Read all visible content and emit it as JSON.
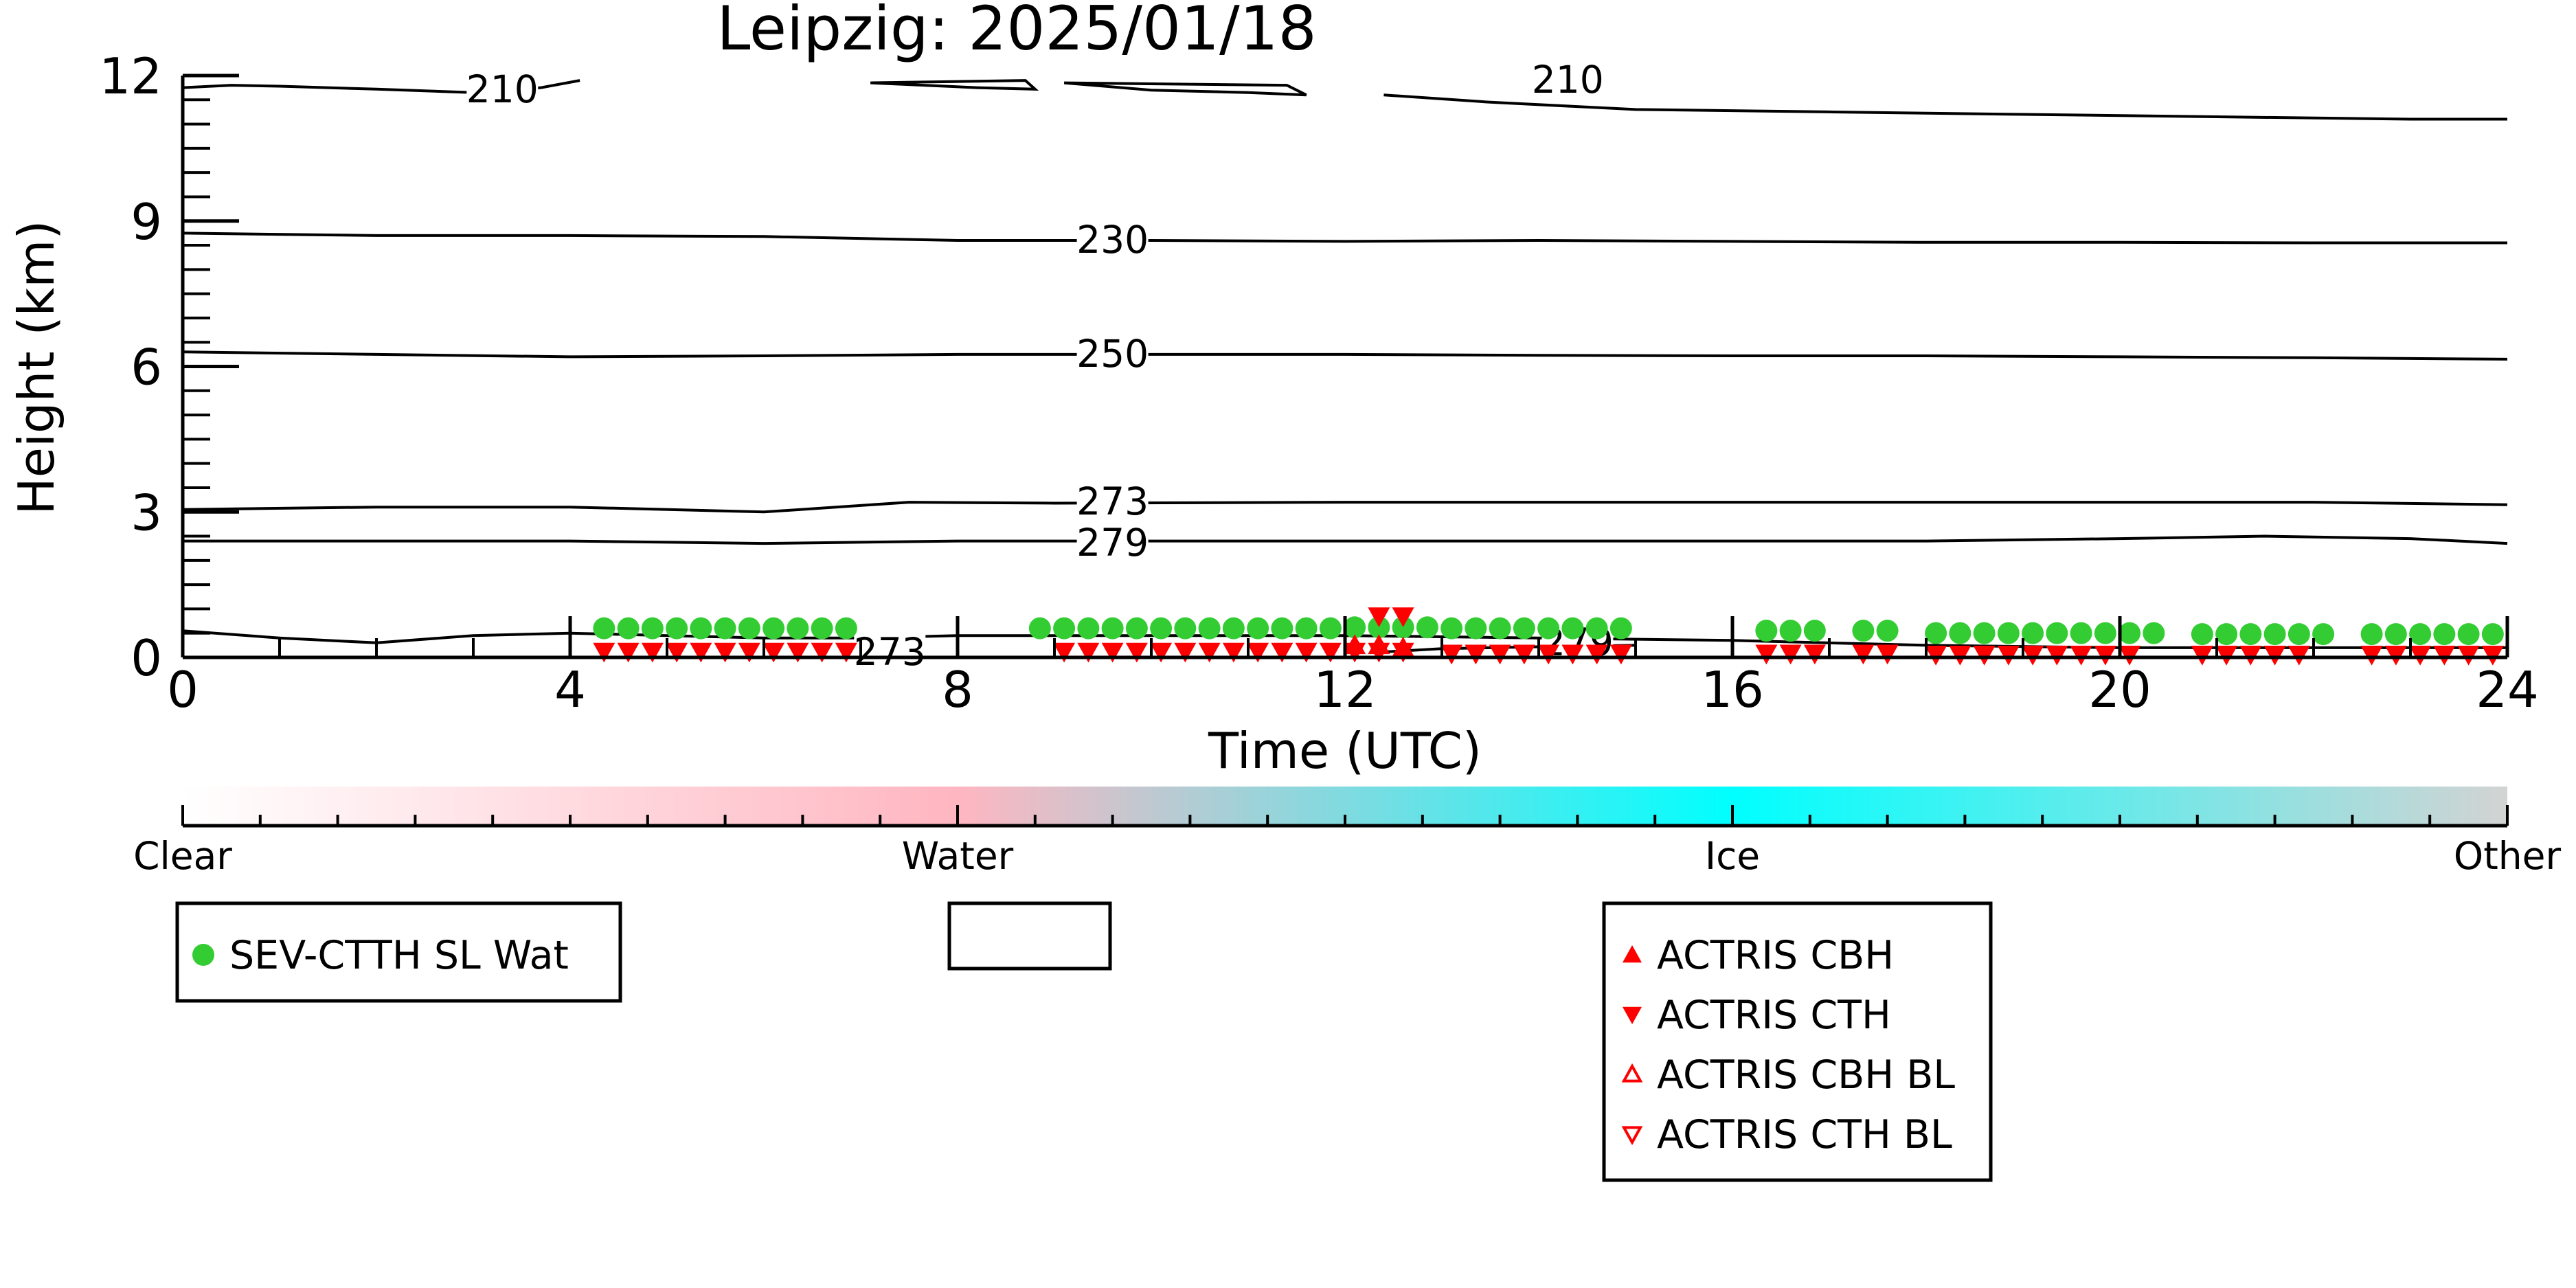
{
  "chart_data": {
    "type": "scatter",
    "title": "Leipzig: 2025/01/18",
    "xlabel": "Time (UTC)",
    "ylabel": "Height (km)",
    "xlim": [
      0,
      24
    ],
    "ylim": [
      0,
      12
    ],
    "xticks": [
      0,
      4,
      8,
      12,
      16,
      20,
      24
    ],
    "yticks": [
      0,
      3,
      6,
      9,
      12
    ],
    "grid": false,
    "colorbar": {
      "labels": [
        "Clear",
        "Water",
        "Ice",
        "Other"
      ],
      "colors": [
        "#ffffff",
        "#ffb6c1",
        "#00ffff",
        "#d3d3d3"
      ]
    },
    "contours": [
      {
        "label": "210",
        "label_pos": [
          3.3,
          11.7
        ],
        "x": [
          0,
          0.5,
          1,
          2,
          3,
          3.7,
          4.1
        ],
        "y": [
          11.75,
          11.8,
          11.78,
          11.72,
          11.65,
          11.75,
          11.9
        ]
      },
      {
        "label": "",
        "label_pos": null,
        "x": [
          7.1,
          8.2,
          8.8,
          8.7,
          7.1
        ],
        "y": [
          11.85,
          11.75,
          11.72,
          11.9,
          11.85
        ]
      },
      {
        "label": "",
        "label_pos": null,
        "x": [
          9.1,
          10,
          11,
          11.6,
          11.4,
          9.1
        ],
        "y": [
          11.85,
          11.7,
          11.65,
          11.6,
          11.8,
          11.85
        ]
      },
      {
        "label": "210",
        "label_pos": [
          14.3,
          11.9
        ],
        "x": [
          12.4,
          13.5,
          15,
          17,
          19,
          21,
          23,
          24
        ],
        "y": [
          11.6,
          11.45,
          11.3,
          11.25,
          11.2,
          11.15,
          11.1,
          11.1
        ]
      },
      {
        "label": "230",
        "label_pos": [
          9.6,
          8.6
        ],
        "x": [
          0,
          2,
          4,
          6,
          8,
          10,
          12,
          14,
          16,
          18,
          20,
          22,
          24
        ],
        "y": [
          8.75,
          8.7,
          8.7,
          8.68,
          8.6,
          8.6,
          8.58,
          8.6,
          8.58,
          8.56,
          8.56,
          8.55,
          8.55
        ]
      },
      {
        "label": "250",
        "label_pos": [
          9.6,
          6.25
        ],
        "x": [
          0,
          2,
          4,
          6,
          8,
          10,
          12,
          14,
          16,
          18,
          20,
          22,
          24
        ],
        "y": [
          6.3,
          6.25,
          6.2,
          6.22,
          6.25,
          6.25,
          6.25,
          6.23,
          6.22,
          6.22,
          6.2,
          6.18,
          6.15
        ]
      },
      {
        "label": "273",
        "label_pos": [
          9.6,
          3.2
        ],
        "x": [
          0,
          2,
          4,
          6,
          7.5,
          9,
          12,
          14,
          16,
          18,
          20,
          22,
          24
        ],
        "y": [
          3.05,
          3.1,
          3.1,
          3.0,
          3.2,
          3.18,
          3.2,
          3.2,
          3.2,
          3.2,
          3.2,
          3.2,
          3.15
        ]
      },
      {
        "label": "279",
        "label_pos": [
          9.6,
          2.35
        ],
        "x": [
          0,
          2,
          4,
          6,
          8,
          10,
          12,
          14,
          16,
          18,
          20,
          21.5,
          23,
          24
        ],
        "y": [
          2.4,
          2.4,
          2.4,
          2.35,
          2.4,
          2.4,
          2.4,
          2.4,
          2.4,
          2.4,
          2.45,
          2.5,
          2.45,
          2.35
        ]
      },
      {
        "label": "273",
        "label_pos": [
          7.3,
          0.1
        ],
        "x": [
          0,
          1,
          2,
          3,
          4,
          5,
          6,
          7,
          8,
          10,
          12,
          14,
          16,
          18,
          20,
          22,
          24
        ],
        "y": [
          0.55,
          0.4,
          0.3,
          0.45,
          0.5,
          0.45,
          0.4,
          0.4,
          0.45,
          0.45,
          0.45,
          0.4,
          0.35,
          0.25,
          0.2,
          0.2,
          0.2
        ]
      },
      {
        "label": "279",
        "label_pos": [
          14.4,
          0.3
        ],
        "x": [
          12.3,
          13,
          14,
          15
        ],
        "y": [
          0.1,
          0.18,
          0.22,
          0.25
        ]
      }
    ],
    "series": [
      {
        "name": "SEV-CTTH SL Wat",
        "marker": "circle",
        "color": "#33cc33",
        "x": [
          4.35,
          4.6,
          4.85,
          5.1,
          5.35,
          5.6,
          5.85,
          6.1,
          6.35,
          6.6,
          6.85,
          8.85,
          9.1,
          9.35,
          9.6,
          9.85,
          10.1,
          10.35,
          10.6,
          10.85,
          11.1,
          11.35,
          11.6,
          11.85,
          12.1,
          12.35,
          12.6,
          12.85,
          13.1,
          13.35,
          13.6,
          13.85,
          14.1,
          14.35,
          14.6,
          14.85,
          16.35,
          16.6,
          16.85,
          17.35,
          17.6,
          18.1,
          18.35,
          18.6,
          18.85,
          19.1,
          19.35,
          19.6,
          19.85,
          20.1,
          20.35,
          20.85,
          21.1,
          21.35,
          21.6,
          21.85,
          22.1,
          22.6,
          22.85,
          23.1,
          23.35,
          23.6,
          23.85
        ],
        "y": [
          0.6,
          0.6,
          0.6,
          0.6,
          0.6,
          0.6,
          0.6,
          0.6,
          0.6,
          0.6,
          0.6,
          0.6,
          0.6,
          0.6,
          0.6,
          0.6,
          0.6,
          0.6,
          0.6,
          0.6,
          0.6,
          0.6,
          0.6,
          0.6,
          0.62,
          0.62,
          0.62,
          0.62,
          0.6,
          0.6,
          0.6,
          0.6,
          0.6,
          0.6,
          0.6,
          0.6,
          0.55,
          0.55,
          0.55,
          0.55,
          0.55,
          0.5,
          0.5,
          0.5,
          0.5,
          0.5,
          0.5,
          0.5,
          0.5,
          0.5,
          0.5,
          0.48,
          0.48,
          0.48,
          0.48,
          0.48,
          0.48,
          0.48,
          0.48,
          0.48,
          0.48,
          0.48,
          0.48
        ]
      },
      {
        "name": "ACTRIS CBH",
        "marker": "triangle-up",
        "color": "#ff0000",
        "x": [
          12.1,
          12.35,
          12.6
        ],
        "y": [
          0.25,
          0.25,
          0.2
        ]
      },
      {
        "name": "ACTRIS CTH",
        "marker": "triangle-down",
        "color": "#ff0000",
        "x": [
          4.35,
          4.6,
          4.85,
          5.1,
          5.35,
          5.6,
          5.85,
          6.1,
          6.35,
          6.6,
          6.85,
          9.1,
          9.35,
          9.6,
          9.85,
          10.1,
          10.35,
          10.6,
          10.85,
          11.1,
          11.35,
          11.6,
          11.85,
          12.1,
          12.35,
          12.6,
          13.1,
          13.35,
          13.6,
          13.85,
          14.1,
          14.35,
          14.6,
          14.85,
          16.35,
          16.6,
          16.85,
          17.35,
          17.6,
          18.1,
          18.35,
          18.6,
          18.85,
          19.1,
          19.35,
          19.6,
          19.85,
          20.1,
          20.85,
          21.1,
          21.35,
          21.6,
          21.85,
          22.6,
          22.85,
          23.1,
          23.35,
          23.6,
          23.85,
          12.35,
          12.6
        ],
        "y": [
          0.12,
          0.12,
          0.12,
          0.12,
          0.12,
          0.12,
          0.12,
          0.12,
          0.12,
          0.12,
          0.12,
          0.12,
          0.12,
          0.12,
          0.12,
          0.12,
          0.12,
          0.12,
          0.12,
          0.12,
          0.12,
          0.12,
          0.12,
          0.12,
          0.12,
          0.12,
          0.08,
          0.08,
          0.08,
          0.08,
          0.08,
          0.08,
          0.08,
          0.08,
          0.08,
          0.08,
          0.08,
          0.08,
          0.08,
          0.06,
          0.06,
          0.06,
          0.06,
          0.06,
          0.06,
          0.06,
          0.06,
          0.06,
          0.06,
          0.06,
          0.06,
          0.06,
          0.06,
          0.06,
          0.06,
          0.06,
          0.06,
          0.06,
          0.06,
          0.85,
          0.85
        ]
      },
      {
        "name": "ACTRIS CBH BL",
        "marker": "triangle-up-open",
        "color": "#ff0000",
        "x": [],
        "y": []
      },
      {
        "name": "ACTRIS CTH BL",
        "marker": "triangle-down-open",
        "color": "#ff0000",
        "x": [],
        "y": []
      }
    ],
    "legends": [
      {
        "entries": [
          "SEV-CTTH SL Wat"
        ]
      },
      {
        "entries": []
      },
      {
        "entries": [
          "ACTRIS CBH",
          "ACTRIS CTH",
          "ACTRIS CBH BL",
          "ACTRIS CTH BL"
        ]
      }
    ]
  }
}
